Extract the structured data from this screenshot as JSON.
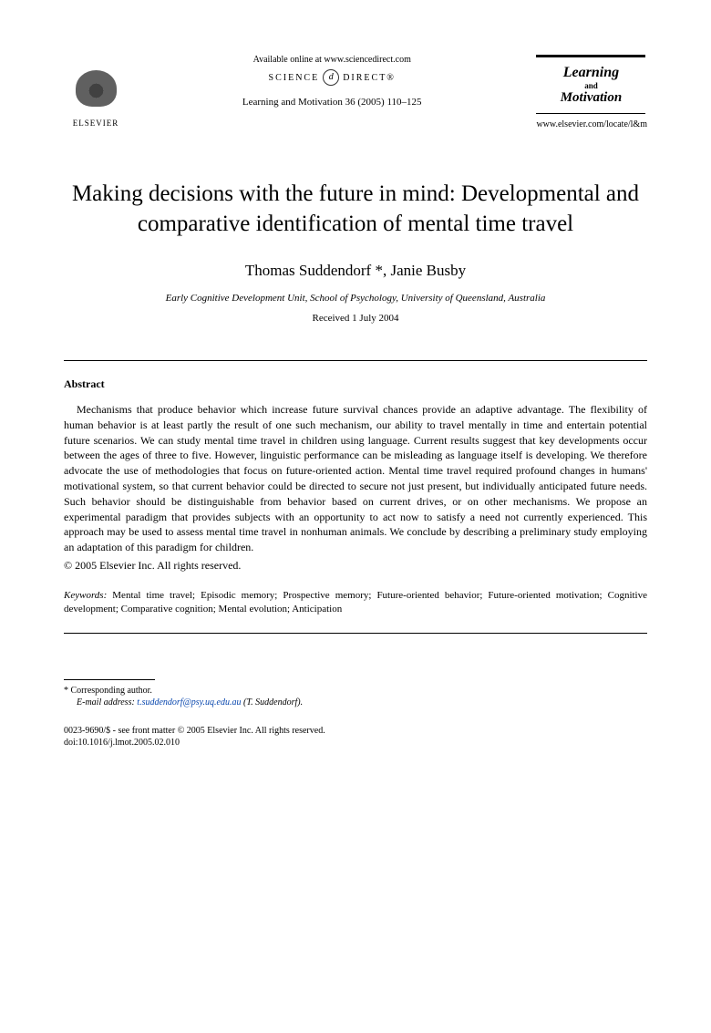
{
  "header": {
    "publisher": "ELSEVIER",
    "available_online": "Available online at www.sciencedirect.com",
    "science_direct_left": "SCIENCE",
    "science_direct_right": "DIRECT®",
    "journal_reference": "Learning and Motivation 36 (2005) 110–125",
    "journal_name_line1": "Learning",
    "journal_name_and": "and",
    "journal_name_line2": "Motivation",
    "journal_url": "www.elsevier.com/locate/l&m"
  },
  "title": "Making decisions with the future in mind: Developmental and comparative identification of mental time travel",
  "authors": "Thomas Suddendorf *, Janie Busby",
  "affiliation": "Early Cognitive Development Unit, School of Psychology, University of Queensland, Australia",
  "received": "Received 1 July 2004",
  "abstract_heading": "Abstract",
  "abstract_text": "Mechanisms that produce behavior which increase future survival chances provide an adaptive advantage. The flexibility of human behavior is at least partly the result of one such mechanism, our ability to travel mentally in time and entertain potential future scenarios. We can study mental time travel in children using language. Current results suggest that key developments occur between the ages of three to five. However, linguistic performance can be misleading as language itself is developing. We therefore advocate the use of methodologies that focus on future-oriented action. Mental time travel required profound changes in humans' motivational system, so that current behavior could be directed to secure not just present, but individually anticipated future needs. Such behavior should be distinguishable from behavior based on current drives, or on other mechanisms. We propose an experimental paradigm that provides subjects with an opportunity to act now to satisfy a need not currently experienced. This approach may be used to assess mental time travel in nonhuman animals. We conclude by describing a preliminary study employing an adaptation of this paradigm for children.",
  "copyright": "© 2005 Elsevier Inc. All rights reserved.",
  "keywords_label": "Keywords:",
  "keywords_text": " Mental time travel; Episodic memory; Prospective memory; Future-oriented behavior; Future-oriented motivation; Cognitive development; Comparative cognition; Mental evolution; Anticipation",
  "footnote": {
    "corresponding": "* Corresponding author.",
    "email_label": "E-mail address:",
    "email": "t.suddendorf@psy.uq.edu.au",
    "email_author": "(T. Suddendorf)."
  },
  "footer": {
    "issn": "0023-9690/$ - see front matter © 2005 Elsevier Inc. All rights reserved.",
    "doi": "doi:10.1016/j.lmot.2005.02.010"
  }
}
